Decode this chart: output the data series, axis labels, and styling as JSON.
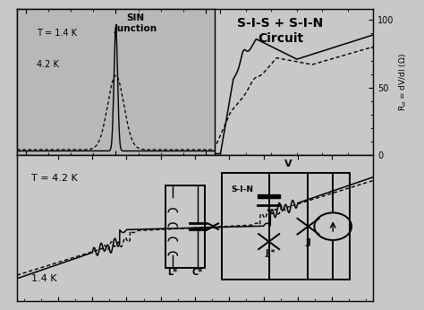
{
  "bg_color": "#c8c8c8",
  "panel_bg": "#c8c8c8",
  "inset_bg": "#b8b8b8",
  "title": "S-I-S + S-I-N\nCircuit",
  "inset_title": "SIN\nJunction",
  "label_14K_inset": "T = 1.4 K",
  "label_42K_inset": "4.2 K",
  "label_14K_bot": "1.4 K",
  "label_42K_bot": "T = 4.2 K",
  "ylabel_right": "R$_d$ = dV/dI ($\\Omega$)"
}
